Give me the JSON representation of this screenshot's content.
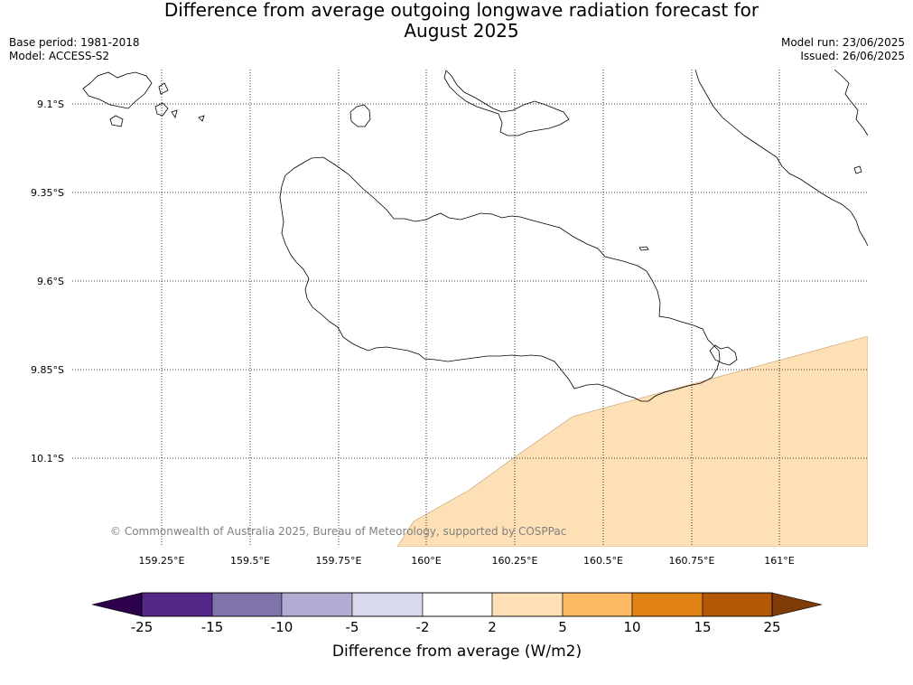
{
  "title": "Difference from average outgoing longwave radiation forecast for\nAugust 2025",
  "base_period": "Base period: 1981-2018",
  "model": "Model: ACCESS-S2",
  "model_run": "Model run: 23/06/2025",
  "issued": "Issued: 26/06/2025",
  "copyright": "© Commonwealth of Australia 2025, Bureau of Meteorology, supported by COSPPac",
  "lat_labels": [
    "9.1°S",
    "9.35°S",
    "9.6°S",
    "9.85°S",
    "10.1°S"
  ],
  "lon_labels": [
    "159.25°E",
    "159.5°E",
    "159.75°E",
    "160°E",
    "160.25°E",
    "160.5°E",
    "160.75°E",
    "161°E"
  ],
  "colorbar": {
    "label": "Difference from average (W/m2)",
    "ticks": [
      "-25",
      "-15",
      "-10",
      "-5",
      "-2",
      "2",
      "5",
      "10",
      "15",
      "25"
    ],
    "colors": [
      "#2d004b",
      "#542788",
      "#8073ac",
      "#b2abd2",
      "#d8daeb",
      "#ffffff",
      "#fee0b6",
      "#fdb863",
      "#e08214",
      "#b35806",
      "#7f3b08"
    ]
  },
  "shaded_region_color": "#fee0b6"
}
